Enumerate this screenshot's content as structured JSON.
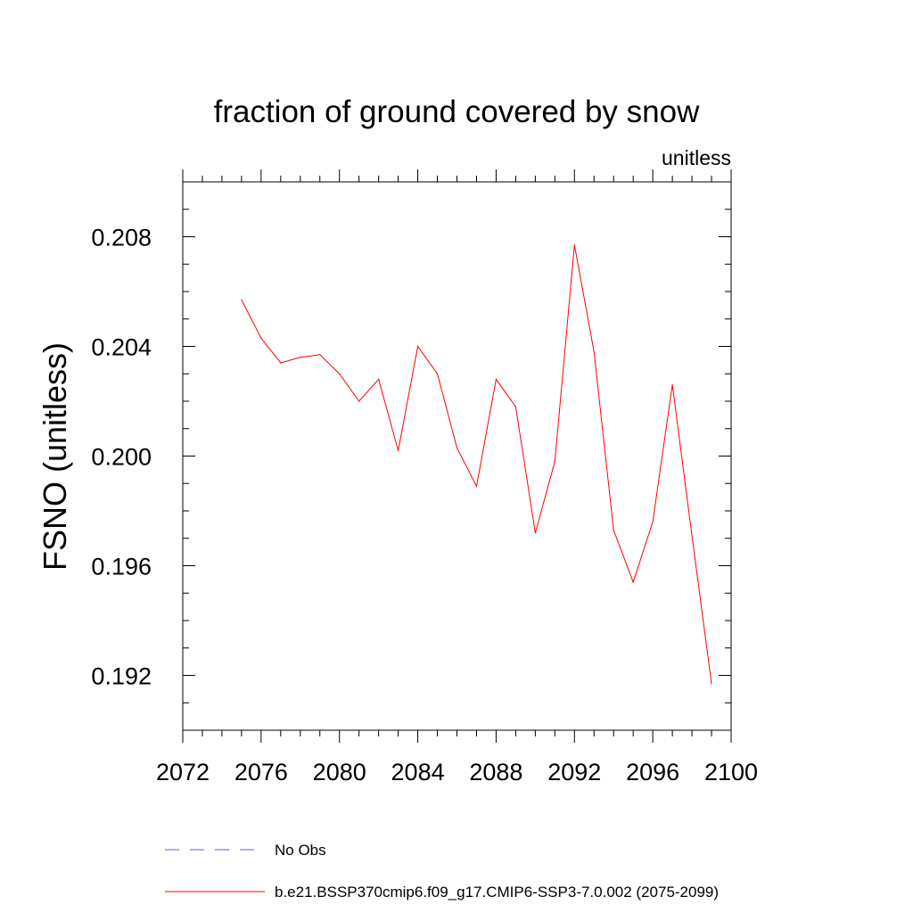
{
  "chart_data": {
    "type": "line",
    "title": "fraction of ground covered by snow",
    "units_label": "unitless",
    "ylabel": "FSNO  (unitless)",
    "xlabel": "",
    "xlim": [
      2072,
      2100
    ],
    "ylim": [
      0.19,
      0.21
    ],
    "x_ticks": [
      2072,
      2076,
      2080,
      2084,
      2088,
      2092,
      2096,
      2100
    ],
    "x_tick_labels": [
      "2072",
      "2076",
      "2080",
      "2084",
      "2088",
      "2092",
      "2096",
      "2100"
    ],
    "y_ticks": [
      0.192,
      0.196,
      0.2,
      0.204,
      0.208
    ],
    "y_tick_labels": [
      "0.192",
      "0.196",
      "0.200",
      "0.204",
      "0.208"
    ],
    "x_minor_step": 1,
    "y_minor_step": 0.001,
    "grid": false,
    "legend_position": "bottom",
    "series": [
      {
        "name": "No Obs",
        "color": "#6a5acd",
        "dash": "dashed",
        "x": [],
        "values": []
      },
      {
        "name": "b.e21.BSSP370cmip6.f09_g17.CMIP6-SSP3-7.0.002 (2075-2099)",
        "color": "#ff0000",
        "dash": "solid",
        "x": [
          2075,
          2076,
          2077,
          2078,
          2079,
          2080,
          2081,
          2082,
          2083,
          2084,
          2085,
          2086,
          2087,
          2088,
          2089,
          2090,
          2091,
          2092,
          2093,
          2094,
          2095,
          2096,
          2097,
          2098,
          2099
        ],
        "values": [
          0.2057,
          0.2043,
          0.2034,
          0.2036,
          0.2037,
          0.203,
          0.202,
          0.2028,
          0.2002,
          0.204,
          0.203,
          0.2003,
          0.1989,
          0.2028,
          0.2018,
          0.1972,
          0.1998,
          0.2077,
          0.2038,
          0.1973,
          0.1954,
          0.1976,
          0.2026,
          0.1971,
          0.1917
        ]
      }
    ]
  }
}
